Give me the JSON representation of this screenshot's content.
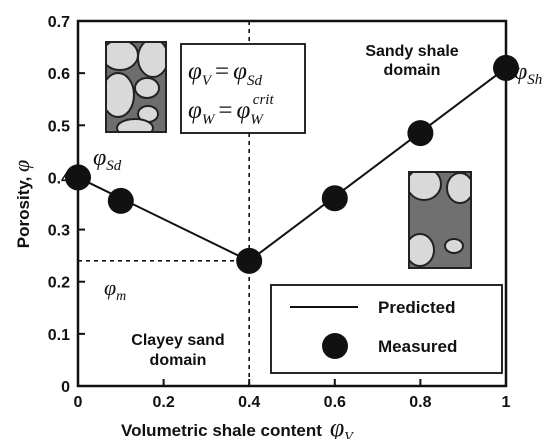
{
  "chart_data": {
    "type": "line",
    "xlabel": "Volumetric shale content",
    "xlabel_symbol": "φ",
    "xlabel_symbol_sub": "V",
    "ylabel": "Porosity, ",
    "ylabel_symbol": "φ",
    "xlim": [
      0,
      1
    ],
    "ylim": [
      0,
      0.7
    ],
    "x_ticks": [
      "0",
      "0.2",
      "0.4",
      "0.6",
      "0.8",
      "1"
    ],
    "y_ticks": [
      "0",
      "0.1",
      "0.2",
      "0.3",
      "0.4",
      "0.5",
      "0.6",
      "0.7"
    ],
    "series": [
      {
        "name": "Predicted",
        "style": "line",
        "x": [
          0,
          0.4,
          1
        ],
        "y": [
          0.4,
          0.24,
          0.61
        ]
      },
      {
        "name": "Measured",
        "style": "marker",
        "x": [
          0,
          0.1,
          0.4,
          0.6,
          0.8,
          1
        ],
        "y": [
          0.4,
          0.355,
          0.24,
          0.36,
          0.485,
          0.61
        ]
      }
    ],
    "legend": {
      "position": "bottom-right",
      "predicted": "Predicted",
      "measured": "Measured"
    },
    "annotations": {
      "phi_sd": {
        "base": "φ",
        "sub": "Sd"
      },
      "phi_sh": {
        "base": "φ",
        "sub": "Sh"
      },
      "phi_m": {
        "base": "φ",
        "sub": "m"
      },
      "phi_m_value": 0.24,
      "critical_x": 0.4,
      "sandy_line1": "Sandy shale",
      "sandy_line2": "domain",
      "clayey_line1": "Clayey sand",
      "clayey_line2": "domain",
      "eq1": {
        "lhs": "φ",
        "lhs_sub": "V",
        "rhs": "φ",
        "rhs_sub": "Sd"
      },
      "eq2": {
        "lhs": "φ",
        "lhs_sub": "W",
        "rhs": "φ",
        "rhs_sub": "W",
        "rhs_sup": "crit"
      }
    },
    "colors": {
      "ink": "#111111",
      "grain": "#d8d8d8",
      "shale": "#707070"
    }
  }
}
